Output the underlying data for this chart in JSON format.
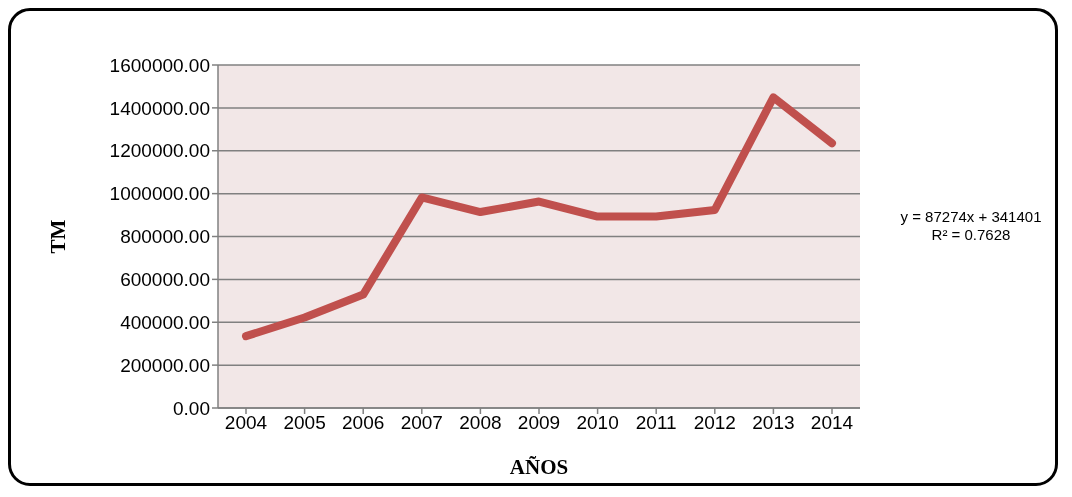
{
  "chart_data": {
    "type": "line",
    "xlabel": "AÑOS",
    "ylabel": "TM",
    "categories": [
      "2004",
      "2005",
      "2006",
      "2007",
      "2008",
      "2009",
      "2010",
      "2011",
      "2012",
      "2013",
      "2014"
    ],
    "series": [
      {
        "color": "#c0504d",
        "values": [
          335000,
          422000,
          529000,
          982000,
          914000,
          963000,
          893000,
          893000,
          924000,
          1449000,
          1235000
        ]
      }
    ],
    "ylim": [
      0,
      1600000
    ],
    "yticks": [
      {
        "value": 0,
        "label": "0.00"
      },
      {
        "value": 200000,
        "label": "200000.00"
      },
      {
        "value": 400000,
        "label": "400000.00"
      },
      {
        "value": 600000,
        "label": "600000.00"
      },
      {
        "value": 800000,
        "label": "800000.00"
      },
      {
        "value": 1000000,
        "label": "1000000.00"
      },
      {
        "value": 1200000,
        "label": "1200000.00"
      },
      {
        "value": 1400000,
        "label": "1400000.00"
      },
      {
        "value": 1600000,
        "label": "1600000.00"
      }
    ],
    "grid": "y",
    "legend": false,
    "marker": "none",
    "line_style": "solid",
    "annotations": [
      "y = 87274x + 341401",
      "R² = 0.7628"
    ]
  }
}
